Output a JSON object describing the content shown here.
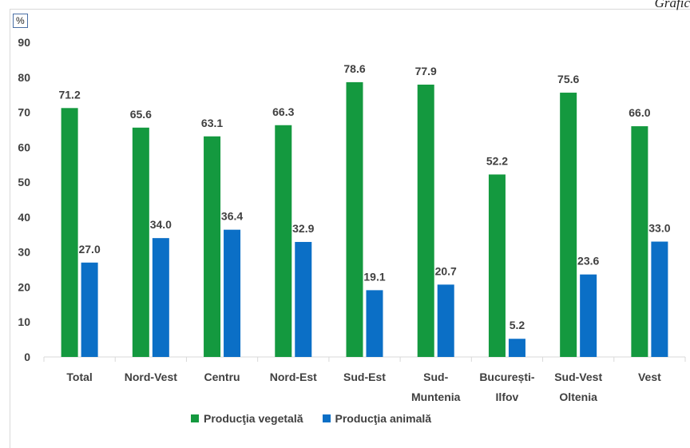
{
  "corner_text": "Grafic",
  "unit": "%",
  "chart_data": {
    "type": "bar",
    "categories": [
      [
        "Total"
      ],
      [
        "Nord-Vest"
      ],
      [
        "Centru"
      ],
      [
        "Nord-Est"
      ],
      [
        "Sud-Est"
      ],
      [
        "Sud-",
        "Muntenia"
      ],
      [
        "București-",
        "Ilfov"
      ],
      [
        "Sud-Vest",
        "Oltenia"
      ],
      [
        "Vest"
      ]
    ],
    "series": [
      {
        "name": "Producţia vegetală",
        "color": "#14993f",
        "values": [
          71.2,
          65.6,
          63.1,
          66.3,
          78.6,
          77.9,
          52.2,
          75.6,
          66.0
        ]
      },
      {
        "name": "Producţia animală",
        "color": "#0b6fc6",
        "values": [
          27.0,
          34.0,
          36.4,
          32.9,
          19.1,
          20.7,
          5.2,
          23.6,
          33.0
        ]
      }
    ],
    "ylim": [
      0,
      90
    ],
    "yticks": [
      0,
      10,
      20,
      30,
      40,
      50,
      60,
      70,
      80,
      90
    ],
    "grid": false,
    "legend_position": "bottom"
  }
}
